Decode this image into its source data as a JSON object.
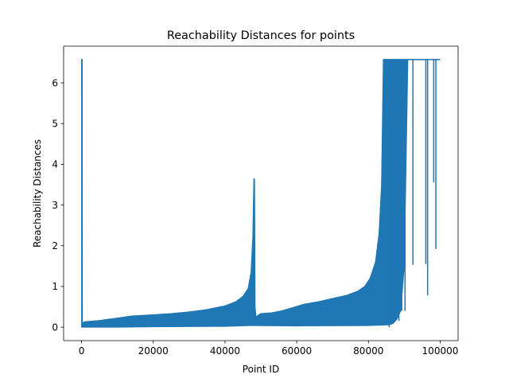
{
  "chart_data": {
    "type": "line",
    "title": "Reachability Distances for points",
    "xlabel": "Point ID",
    "ylabel": "Reachability Distances",
    "xlim": [
      -5000,
      105000
    ],
    "ylim": [
      -0.33,
      6.9
    ],
    "xticks": [
      0,
      20000,
      40000,
      60000,
      80000,
      100000
    ],
    "xtick_labels": [
      "0",
      "20000",
      "40000",
      "60000",
      "80000",
      "100000"
    ],
    "yticks": [
      0,
      1,
      2,
      3,
      4,
      5,
      6
    ],
    "ytick_labels": [
      "0",
      "1",
      "2",
      "3",
      "4",
      "5",
      "6"
    ],
    "grid": false,
    "line_color": "#1f77b4",
    "series": [
      {
        "upper": [
          [
            0,
            6.57
          ],
          [
            150,
            6.57
          ],
          [
            200,
            0.1
          ],
          [
            1000,
            0.13
          ],
          [
            5000,
            0.16
          ],
          [
            10000,
            0.22
          ],
          [
            14000,
            0.27
          ],
          [
            20000,
            0.3
          ],
          [
            25000,
            0.33
          ],
          [
            30000,
            0.37
          ],
          [
            35000,
            0.43
          ],
          [
            40000,
            0.52
          ],
          [
            43000,
            0.62
          ],
          [
            45000,
            0.75
          ],
          [
            46500,
            0.95
          ],
          [
            47300,
            1.35
          ],
          [
            47800,
            2.2
          ],
          [
            48100,
            3.65
          ],
          [
            48200,
            3.6
          ],
          [
            48350,
            0.5
          ],
          [
            48600,
            0.25
          ],
          [
            50000,
            0.33
          ],
          [
            53000,
            0.35
          ],
          [
            56000,
            0.4
          ],
          [
            59000,
            0.48
          ],
          [
            62000,
            0.56
          ],
          [
            66000,
            0.62
          ],
          [
            70000,
            0.7
          ],
          [
            74000,
            0.78
          ],
          [
            77000,
            0.88
          ],
          [
            79000,
            1.0
          ],
          [
            80500,
            1.2
          ],
          [
            82000,
            1.6
          ],
          [
            83000,
            2.3
          ],
          [
            83700,
            3.5
          ],
          [
            84200,
            6.57
          ],
          [
            100000,
            6.57
          ]
        ],
        "lower": [
          [
            0,
            0.0
          ],
          [
            10000,
            0.0
          ],
          [
            20000,
            0.01
          ],
          [
            40000,
            0.02
          ],
          [
            47000,
            0.04
          ],
          [
            48500,
            0.04
          ],
          [
            60000,
            0.03
          ],
          [
            80000,
            0.04
          ],
          [
            84000,
            0.05
          ],
          [
            86000,
            0.06
          ],
          [
            87000,
            0.1
          ],
          [
            88000,
            0.2
          ],
          [
            89000,
            0.4
          ],
          [
            90000,
            1.5
          ],
          [
            91000,
            6.57
          ],
          [
            100000,
            6.57
          ]
        ],
        "spikes": [
          [
            85800,
            0.0
          ],
          [
            86500,
            0.2
          ],
          [
            87500,
            0.3
          ],
          [
            88500,
            0.15
          ],
          [
            89300,
            0.4
          ],
          [
            90200,
            0.4
          ],
          [
            92400,
            1.53
          ],
          [
            96000,
            1.55
          ],
          [
            96500,
            0.78
          ],
          [
            98200,
            3.56
          ],
          [
            98800,
            1.92
          ]
        ]
      }
    ]
  }
}
